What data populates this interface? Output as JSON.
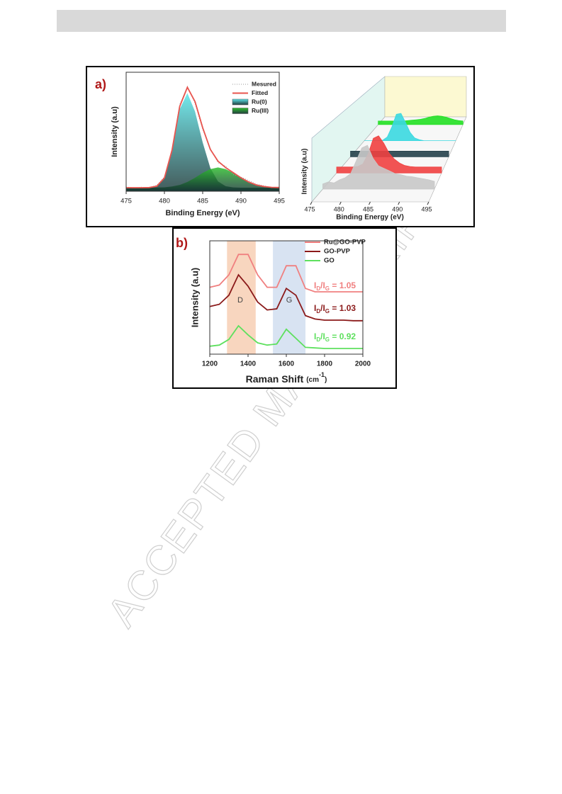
{
  "watermark": "ACCEPTED MANUSCRIPT",
  "chart_data": [
    {
      "type": "line",
      "label": "a)",
      "xlabel": "Binding Energy (eV)",
      "ylabel": "Intensity (a.u)",
      "x": [
        475,
        476,
        477,
        478,
        479,
        480,
        481,
        482,
        483,
        484,
        485,
        486,
        487,
        488,
        489,
        490,
        491,
        492,
        493,
        494,
        495
      ],
      "xlim": [
        475,
        495
      ],
      "xticks": [
        475,
        480,
        485,
        490,
        495
      ],
      "ylim": [
        0,
        100
      ],
      "legend": "upper right",
      "series": [
        {
          "name": "Mesured",
          "color": "#9a9a9a",
          "style": "dotted",
          "values": [
            3.5,
            2.8,
            3.4,
            3.0,
            5.1,
            12,
            33,
            73,
            88,
            74,
            52,
            36,
            24,
            21,
            14,
            12,
            9,
            6,
            4.5,
            3,
            3.6
          ]
        },
        {
          "name": "Fitted",
          "color": "#e8544e",
          "values": [
            3,
            3,
            3,
            3.1,
            4.2,
            11.2,
            34.7,
            71.3,
            87.3,
            75.3,
            53.4,
            35.1,
            25.3,
            19.8,
            15.6,
            11.3,
            7.8,
            5.3,
            4,
            3.3,
            3.1
          ]
        },
        {
          "name": "Ru(0)",
          "color": "#5ce6ea",
          "fill": true,
          "values": [
            3,
            3,
            3,
            3.1,
            4.1,
            10.9,
            33.7,
            69,
            82.5,
            67,
            41,
            19.5,
            8.3,
            4.2,
            3.2,
            3,
            3,
            3,
            3,
            3,
            3
          ]
        },
        {
          "name": "Ru(III)",
          "color": "#2fc02f",
          "fill": true,
          "values": [
            3,
            3,
            3,
            3,
            3.1,
            3.3,
            4,
            5.3,
            7.8,
            11.3,
            15.4,
            18.6,
            20,
            18.6,
            15.4,
            11.3,
            7.8,
            5.3,
            4,
            3.3,
            3.1
          ]
        }
      ]
    },
    {
      "type": "waterfall3d",
      "xlabel": "Binding Energy (eV)",
      "ylabel": "Intensity (a.u)",
      "x": [
        475,
        476,
        477,
        478,
        479,
        480,
        481,
        482,
        483,
        484,
        485,
        486,
        487,
        488,
        489,
        490,
        491,
        492,
        493,
        494,
        495
      ],
      "xlim": [
        475,
        495
      ],
      "xticks": [
        475,
        480,
        485,
        490,
        495
      ],
      "ylim": [
        0,
        100
      ],
      "series": [
        {
          "color": "#c8c8c8",
          "values": [
            10,
            14,
            12,
            18,
            22,
            30,
            55,
            80,
            85,
            60,
            45,
            40,
            35,
            30,
            28,
            25,
            24,
            22,
            20,
            18,
            15
          ]
        },
        {
          "color": "#f04040",
          "values": [
            12,
            12,
            12,
            12,
            13,
            18,
            38,
            70,
            75,
            60,
            40,
            28,
            20,
            15,
            13,
            12,
            12,
            12,
            12,
            12,
            12
          ]
        },
        {
          "color": "#25404a",
          "values": [
            12,
            12,
            12,
            12,
            12,
            12,
            12,
            12,
            12,
            12,
            12,
            12,
            12,
            12,
            12,
            12,
            12,
            12,
            12,
            12,
            12
          ]
        },
        {
          "color": "#3ad8e0",
          "values": [
            0,
            0,
            0,
            0,
            1,
            8,
            30,
            58,
            60,
            40,
            18,
            6,
            2,
            0,
            0,
            0,
            0,
            0,
            0,
            0,
            0
          ]
        },
        {
          "color": "#22e022",
          "values": [
            8,
            8,
            8,
            8,
            8,
            8,
            8,
            9,
            10,
            11,
            12,
            14,
            17,
            19,
            20,
            19,
            17,
            14,
            11,
            9,
            8
          ]
        }
      ]
    },
    {
      "type": "line",
      "label": "b)",
      "xlabel_parts": [
        "Raman Shift ",
        "(cm",
        "-1",
        ")"
      ],
      "ylabel": "Intensity (a.u)",
      "x": [
        1200,
        1250,
        1300,
        1350,
        1400,
        1450,
        1500,
        1550,
        1600,
        1650,
        1700,
        1750,
        1800,
        1850,
        1900,
        1950,
        2000
      ],
      "xlim": [
        1200,
        2000
      ],
      "xticks": [
        1200,
        1400,
        1600,
        1800,
        2000
      ],
      "ylim": [
        0,
        100
      ],
      "legend": "upper right",
      "bands": [
        {
          "range": [
            1290,
            1440
          ],
          "color": "#f2b48a"
        },
        {
          "range": [
            1530,
            1700
          ],
          "color": "#b8cce8"
        }
      ],
      "peak_labels": [
        "D",
        "G"
      ],
      "ratio_labels": [
        {
          "parts": [
            "I",
            "D",
            "/I",
            "G",
            " = 1.05"
          ],
          "color": "#f08080"
        },
        {
          "parts": [
            "I",
            "D",
            "/I",
            "G",
            " = 1.03"
          ],
          "color": "#8b1a1a"
        },
        {
          "parts": [
            "I",
            "D",
            "/I",
            "G",
            " = 0.92"
          ],
          "color": "#5ee05e"
        }
      ],
      "series": [
        {
          "name": "Ru@GO-PVP",
          "color": "#f08080",
          "values": [
            59,
            61,
            70,
            88,
            88,
            70,
            59,
            59,
            78,
            78,
            58,
            55,
            55,
            55,
            55,
            55,
            55
          ]
        },
        {
          "name": "GO-PVP",
          "color": "#8b1a1a",
          "values": [
            42,
            44,
            52,
            70,
            60,
            46,
            39,
            40,
            58,
            52,
            34,
            31,
            30,
            30,
            30,
            29.5,
            29.5
          ]
        },
        {
          "name": "GO",
          "color": "#5ee05e",
          "values": [
            7,
            8,
            13,
            25,
            17,
            10,
            8,
            9,
            22,
            14,
            6,
            5.5,
            5,
            5,
            5,
            5,
            5
          ]
        }
      ]
    }
  ]
}
